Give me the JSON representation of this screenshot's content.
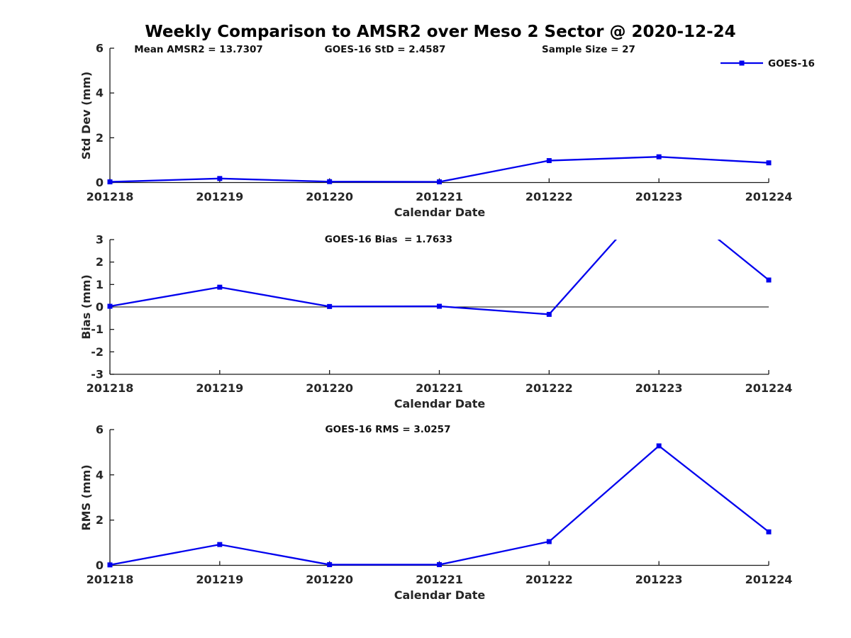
{
  "title": "Weekly Comparison to AMSR2 over Meso 2 Sector @ 2020-12-24",
  "legend": {
    "label": "GOES-16",
    "color": "#0000EE",
    "marker": "filled-square"
  },
  "colors": {
    "series_blue": "#0000EE",
    "axis": "#1a1a1a",
    "zero_line": "#000000"
  },
  "chart_data": [
    {
      "type": "line",
      "name": "std-dev-panel",
      "ylabel": "Std Dev (mm)",
      "xlabel": "Calendar Date",
      "annotations": [
        "Mean AMSR2 = 13.7307",
        "GOES-16 StD = 2.4587",
        "Sample Size = 27"
      ],
      "categories": [
        "201218",
        "201219",
        "201220",
        "201221",
        "201222",
        "201223",
        "201224"
      ],
      "series": [
        {
          "name": "GOES-16",
          "values": [
            0.03,
            0.18,
            0.04,
            0.03,
            0.98,
            1.15,
            0.88
          ]
        }
      ],
      "ylim": [
        0,
        6
      ],
      "yticks": [
        0,
        2,
        4,
        6
      ],
      "grid": false,
      "zero_line": false,
      "legend_position": "top-right-outside"
    },
    {
      "type": "line",
      "name": "bias-panel",
      "ylabel": "Bias (mm)",
      "xlabel": "Calendar Date",
      "annotations": [
        "GOES-16 Bias  = 1.7633"
      ],
      "categories": [
        "201218",
        "201219",
        "201220",
        "201221",
        "201222",
        "201223",
        "201224"
      ],
      "series": [
        {
          "name": "GOES-16",
          "values": [
            0.03,
            0.88,
            0.02,
            0.03,
            -0.33,
            5.15,
            1.2
          ]
        }
      ],
      "ylim": [
        -3,
        3
      ],
      "yticks": [
        -3,
        -2,
        -1,
        0,
        1,
        2,
        3
      ],
      "grid": false,
      "zero_line": true,
      "note": "201223 value exceeds ylim and is clipped at top of axes",
      "legend_position": "none"
    },
    {
      "type": "line",
      "name": "rms-panel",
      "ylabel": "RMS (mm)",
      "xlabel": "Calendar Date",
      "annotations": [
        "GOES-16 RMS = 3.0257"
      ],
      "categories": [
        "201218",
        "201219",
        "201220",
        "201221",
        "201222",
        "201223",
        "201224"
      ],
      "series": [
        {
          "name": "GOES-16",
          "values": [
            0.02,
            0.92,
            0.03,
            0.03,
            1.05,
            5.28,
            1.48
          ]
        }
      ],
      "ylim": [
        0,
        6
      ],
      "yticks": [
        0,
        2,
        4,
        6
      ],
      "grid": false,
      "zero_line": false,
      "legend_position": "none"
    }
  ]
}
